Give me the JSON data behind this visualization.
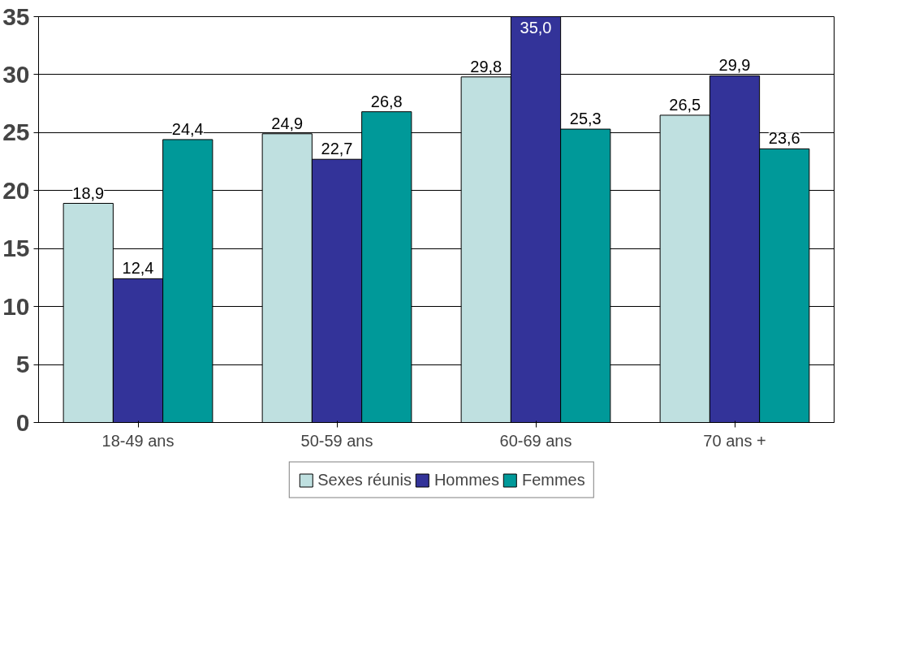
{
  "chart_data": {
    "type": "bar",
    "categories": [
      "18-49 ans",
      "50-59 ans",
      "60-69 ans",
      "70 ans +"
    ],
    "series": [
      {
        "name": "Sexes réunis",
        "color": "#bfe0e0",
        "values": [
          18.9,
          24.9,
          29.8,
          26.5
        ],
        "value_labels": [
          "18,9",
          "24,9",
          "29,8",
          "26,5"
        ]
      },
      {
        "name": "Hommes",
        "color": "#333399",
        "values": [
          12.4,
          22.7,
          35.0,
          29.9
        ],
        "value_labels": [
          "12,4",
          "22,7",
          "35,0",
          "29,9"
        ]
      },
      {
        "name": "Femmes",
        "color": "#009999",
        "values": [
          24.4,
          26.8,
          25.3,
          23.6
        ],
        "value_labels": [
          "24,4",
          "26,8",
          "25,3",
          "23,6"
        ]
      }
    ],
    "ylim": [
      0,
      35
    ],
    "yticks": [
      0,
      5,
      10,
      15,
      20,
      25,
      30,
      35
    ],
    "grid": "y",
    "legend": "bottom"
  }
}
